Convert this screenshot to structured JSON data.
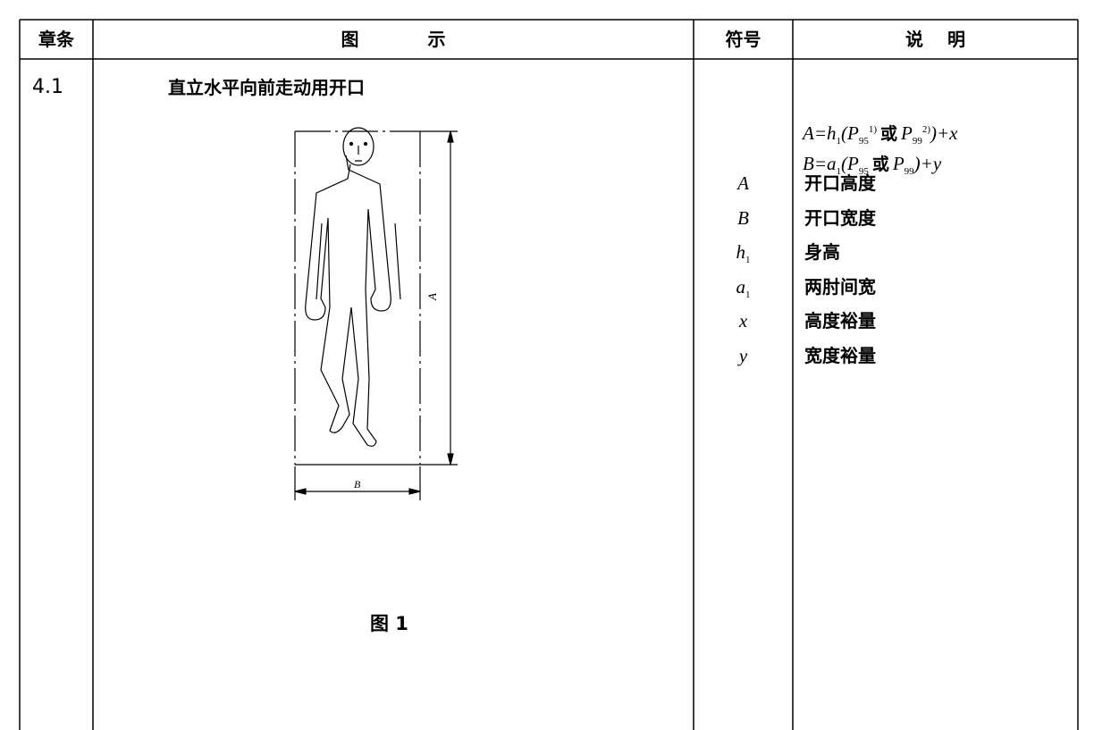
{
  "table": {
    "headers": [
      "章条",
      "图 示",
      "符号",
      "说 明"
    ],
    "rows": [
      {
        "clause": "4.1",
        "figure_title": "直立水平向前走动用开口",
        "figure_labels": [
          "A",
          "B"
        ],
        "figure_caption": "图 1",
        "formulas": [
          [
            {
              "text": "A=h"
            },
            {
              "text": "1",
              "sub": true
            },
            {
              "text": "(P"
            },
            {
              "text": "95",
              "sub": true
            },
            {
              "text": "1)",
              "sup": true
            },
            {
              "text": "或"
            },
            {
              "text": "P"
            },
            {
              "text": "99",
              "sub": true
            },
            {
              "text": "2)",
              "sup": true
            },
            {
              "text": ")+x"
            }
          ],
          [
            {
              "text": "B=a"
            },
            {
              "text": "1",
              "sub": true
            },
            {
              "text": "(P"
            },
            {
              "text": "95",
              "sub": true
            },
            {
              "text": "或"
            },
            {
              "text": "P"
            },
            {
              "text": "99",
              "sub": true
            },
            {
              "text": ")+y"
            }
          ]
        ],
        "symbols": [
          {
            "base": "A"
          },
          {
            "base": "B"
          },
          {
            "base": "h",
            "sub": "1"
          },
          {
            "base": "a",
            "sub": "1"
          },
          {
            "base": "x"
          },
          {
            "base": "y"
          }
        ],
        "meanings": [
          "开口高度",
          "开口宽度",
          "身高",
          "两肘间宽",
          "高度裕量",
          "宽度裕量"
        ]
      }
    ]
  }
}
